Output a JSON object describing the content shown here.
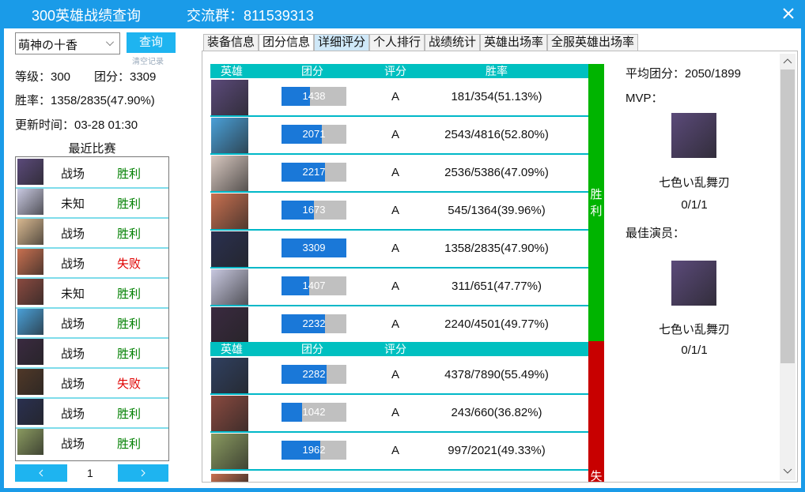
{
  "window": {
    "title": "300英雄战绩查询",
    "group": "交流群：811539313"
  },
  "search": {
    "player": "萌神の十香",
    "button": "查询",
    "clear": "清空记录"
  },
  "profile": {
    "level": "等级：300",
    "team_score": "团分：3309",
    "win_rate": "胜率：1358/2835(47.90%)",
    "updated": "更新时间：03-28 01:30"
  },
  "recent": {
    "title": "最近比赛",
    "page": "1",
    "matches": [
      {
        "mode": "战场",
        "result": "胜利",
        "color": "#008000"
      },
      {
        "mode": "未知",
        "result": "胜利",
        "color": "#008000"
      },
      {
        "mode": "战场",
        "result": "胜利",
        "color": "#008000"
      },
      {
        "mode": "战场",
        "result": "失败",
        "color": "#e00000"
      },
      {
        "mode": "未知",
        "result": "胜利",
        "color": "#008000"
      },
      {
        "mode": "战场",
        "result": "胜利",
        "color": "#008000"
      },
      {
        "mode": "战场",
        "result": "胜利",
        "color": "#008000"
      },
      {
        "mode": "战场",
        "result": "失败",
        "color": "#e00000"
      },
      {
        "mode": "战场",
        "result": "胜利",
        "color": "#008000"
      },
      {
        "mode": "战场",
        "result": "胜利",
        "color": "#008000"
      }
    ]
  },
  "tabs": [
    "装备信息",
    "团分信息",
    "详细评分",
    "个人排行",
    "战绩统计",
    "英雄出场率",
    "全服英雄出场率"
  ],
  "win_table": {
    "headers": [
      "英雄",
      "团分",
      "评分",
      "胜率"
    ],
    "side": "胜利",
    "side_color": "#00b400",
    "rows": [
      {
        "score": 1438,
        "grade": "A",
        "win_rate": "181/354(51.13%)"
      },
      {
        "score": 2071,
        "grade": "A",
        "win_rate": "2543/4816(52.80%)"
      },
      {
        "score": 2217,
        "grade": "A",
        "win_rate": "2536/5386(47.09%)"
      },
      {
        "score": 1673,
        "grade": "A",
        "win_rate": "545/1364(39.96%)"
      },
      {
        "score": 3309,
        "grade": "A",
        "win_rate": "1358/2835(47.90%)"
      },
      {
        "score": 1407,
        "grade": "A",
        "win_rate": "311/651(47.77%)"
      },
      {
        "score": 2232,
        "grade": "A",
        "win_rate": "2240/4501(49.77%)"
      }
    ]
  },
  "loss_table": {
    "headers": [
      "英雄",
      "团分",
      "评分"
    ],
    "side": "失",
    "side_color": "#c80000",
    "rows": [
      {
        "score": 2282,
        "grade": "A",
        "win_rate": "4378/7890(55.49%)"
      },
      {
        "score": 1042,
        "grade": "A",
        "win_rate": "243/660(36.82%)"
      },
      {
        "score": 1962,
        "grade": "A",
        "win_rate": "997/2021(49.33%)"
      }
    ]
  },
  "summary": {
    "average": "平均团分：2050/1899",
    "mvp_label": "MVP：",
    "mvp_name": "七色い乱舞刃",
    "mvp_kda": "0/1/1",
    "actor_label": "最佳演员：",
    "actor_name": "七色い乱舞刃",
    "actor_kda": "0/1/1"
  }
}
